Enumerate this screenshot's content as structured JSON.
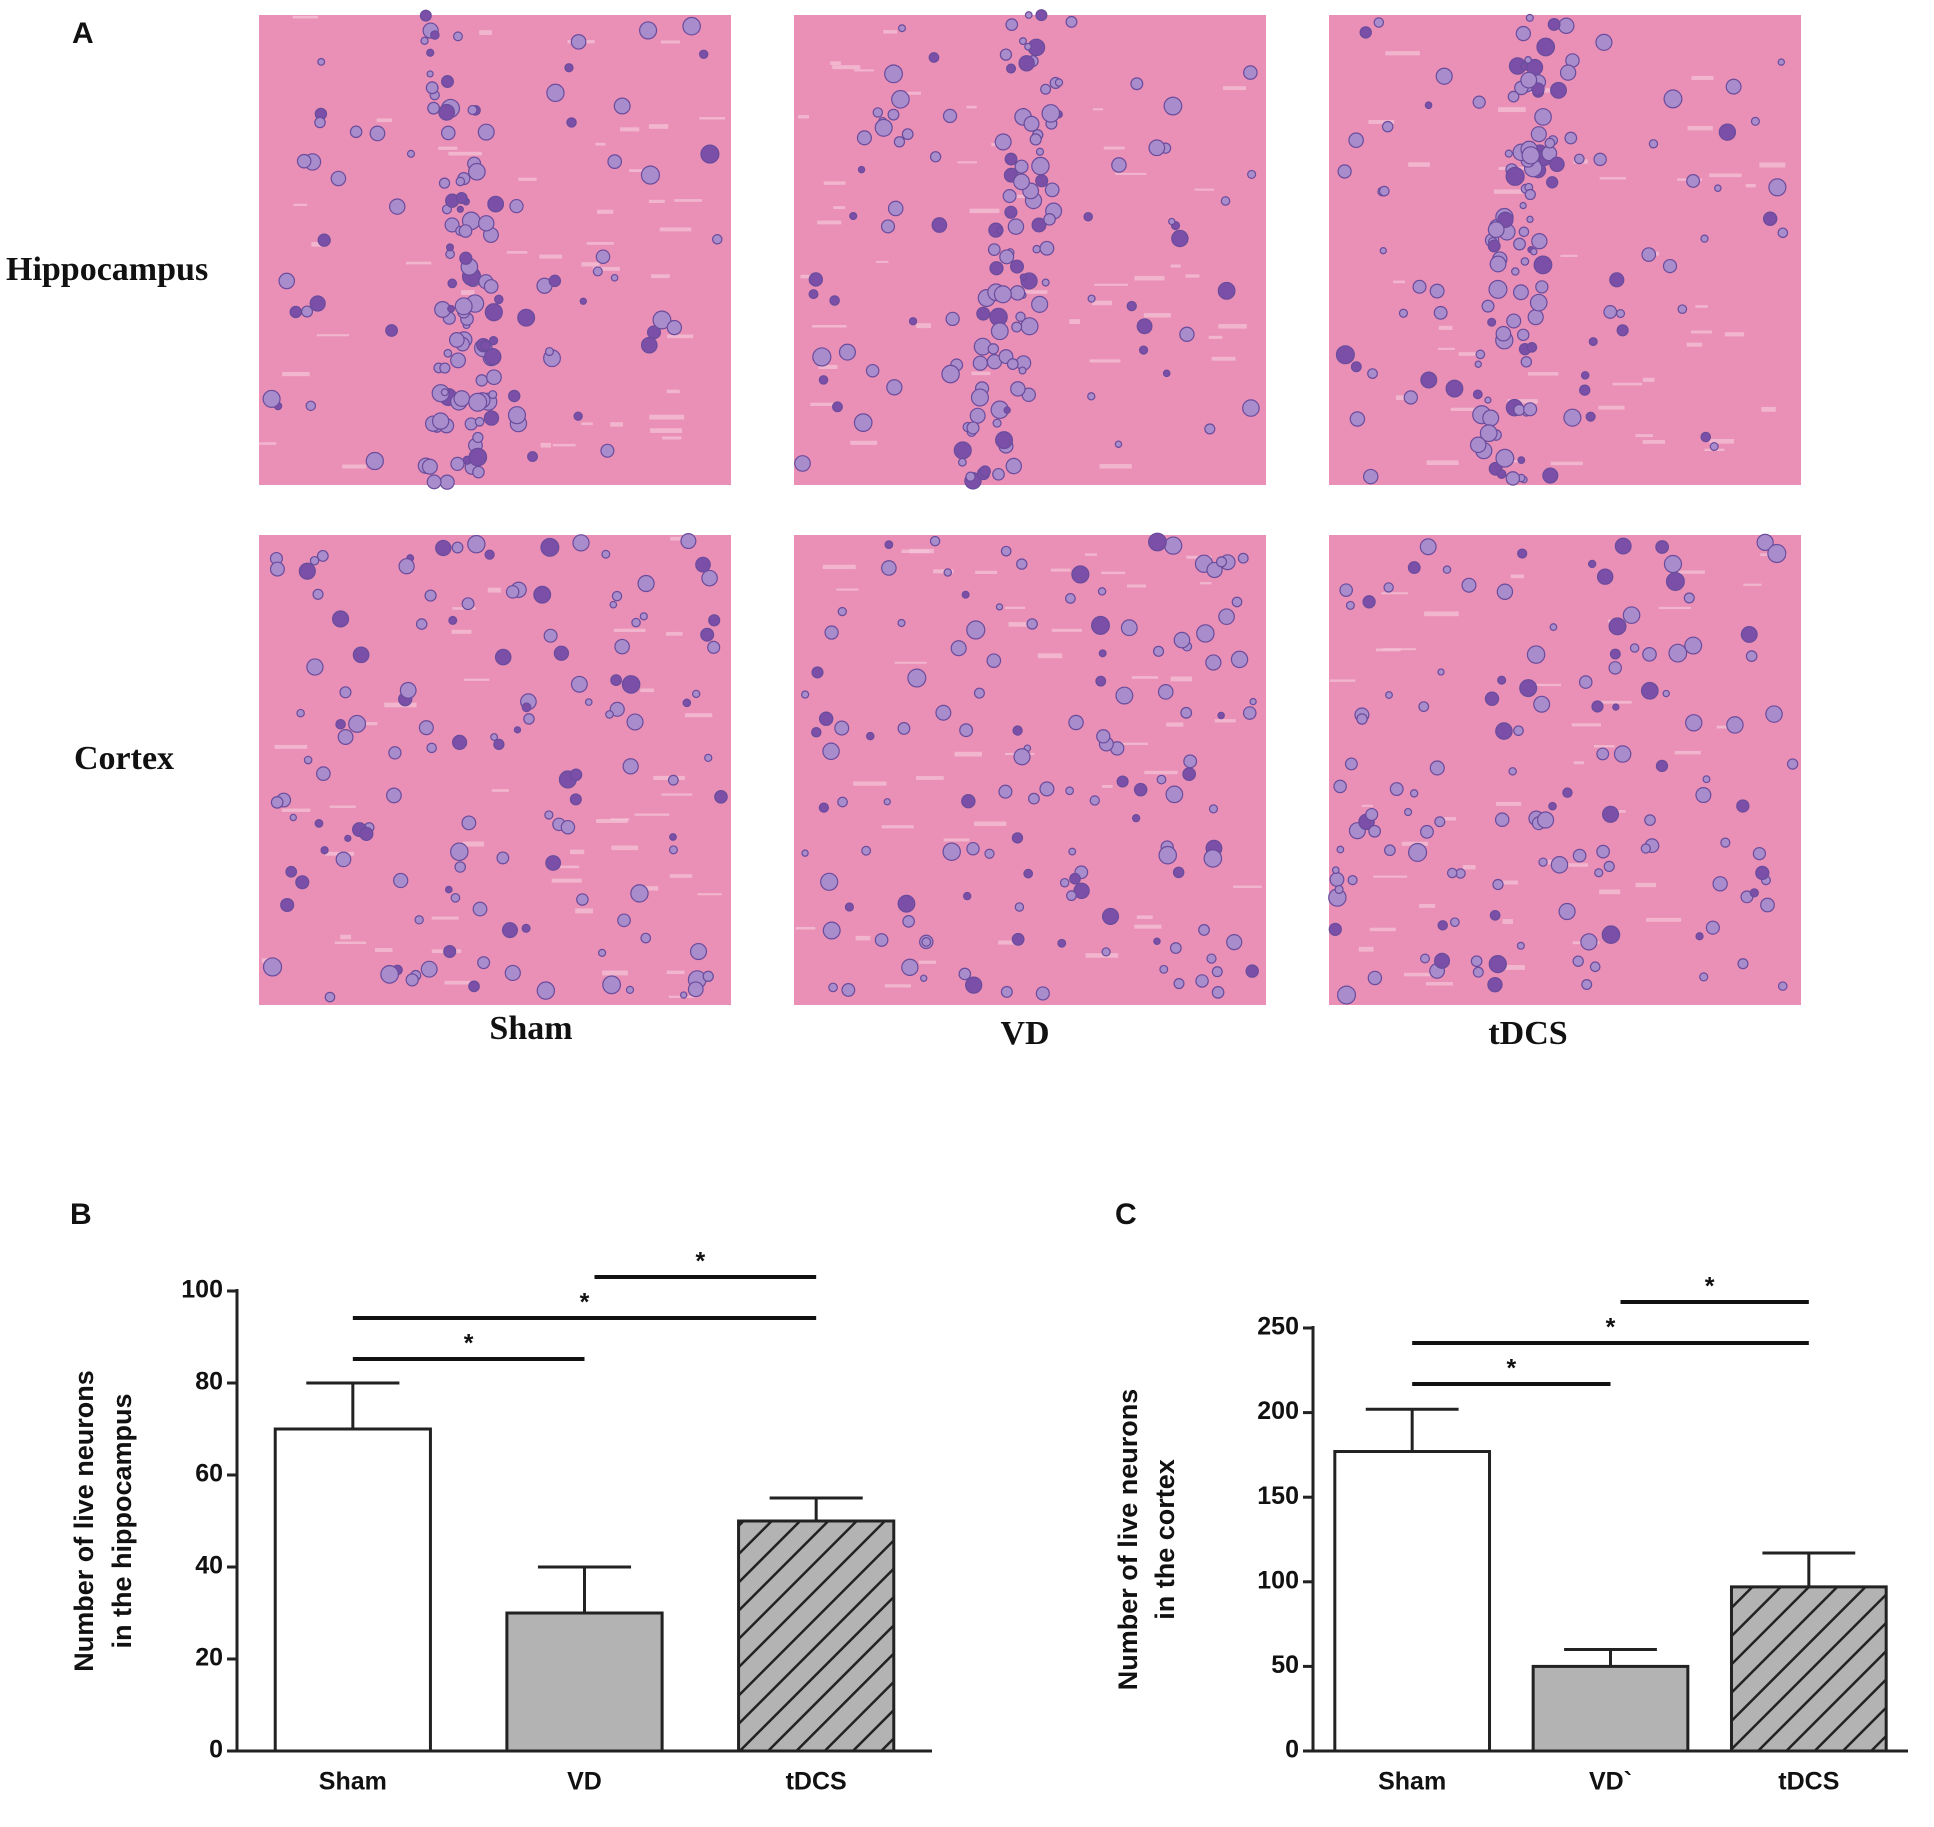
{
  "figure": {
    "panel_labels": [
      "A",
      "B",
      "C"
    ],
    "row_labels": [
      "Hippocampus",
      "Cortex"
    ],
    "column_labels": [
      "Sham",
      "VD",
      "tDCS"
    ]
  },
  "chart_data": [
    {
      "type": "bar",
      "y_label": [
        "Number of live neurons",
        "in the hippocampus"
      ],
      "categories": [
        "Sham",
        "VD",
        "tDCS"
      ],
      "values": [
        70,
        30,
        50
      ],
      "errors": [
        10,
        10,
        5
      ],
      "colors": [
        "#ffffff",
        "#b3b3b3",
        "#b3b3b3"
      ],
      "hatch": [
        false,
        false,
        true
      ],
      "ylim": [
        0,
        100
      ],
      "yticks": [
        0,
        20,
        40,
        60,
        80,
        100
      ],
      "annotations": [
        {
          "from": "Sham",
          "to": "VD",
          "text": "*"
        },
        {
          "from": "Sham",
          "to": "tDCS",
          "text": "*"
        },
        {
          "from": "VD",
          "to": "tDCS",
          "text": "*"
        }
      ]
    },
    {
      "type": "bar",
      "y_label": [
        "Number of live neurons",
        "in the cortex"
      ],
      "categories": [
        "Sham",
        "VD`",
        "tDCS"
      ],
      "values": [
        177,
        50,
        97
      ],
      "errors": [
        25,
        10,
        20
      ],
      "colors": [
        "#ffffff",
        "#b3b3b3",
        "#b3b3b3"
      ],
      "hatch": [
        false,
        false,
        true
      ],
      "ylim": [
        0,
        250
      ],
      "yticks": [
        0,
        50,
        100,
        150,
        200,
        250
      ],
      "annotations": [
        {
          "from": "Sham",
          "to": "VD`",
          "text": "*"
        },
        {
          "from": "Sham",
          "to": "tDCS",
          "text": "*"
        },
        {
          "from": "VD`",
          "to": "tDCS",
          "text": "*"
        }
      ]
    }
  ]
}
